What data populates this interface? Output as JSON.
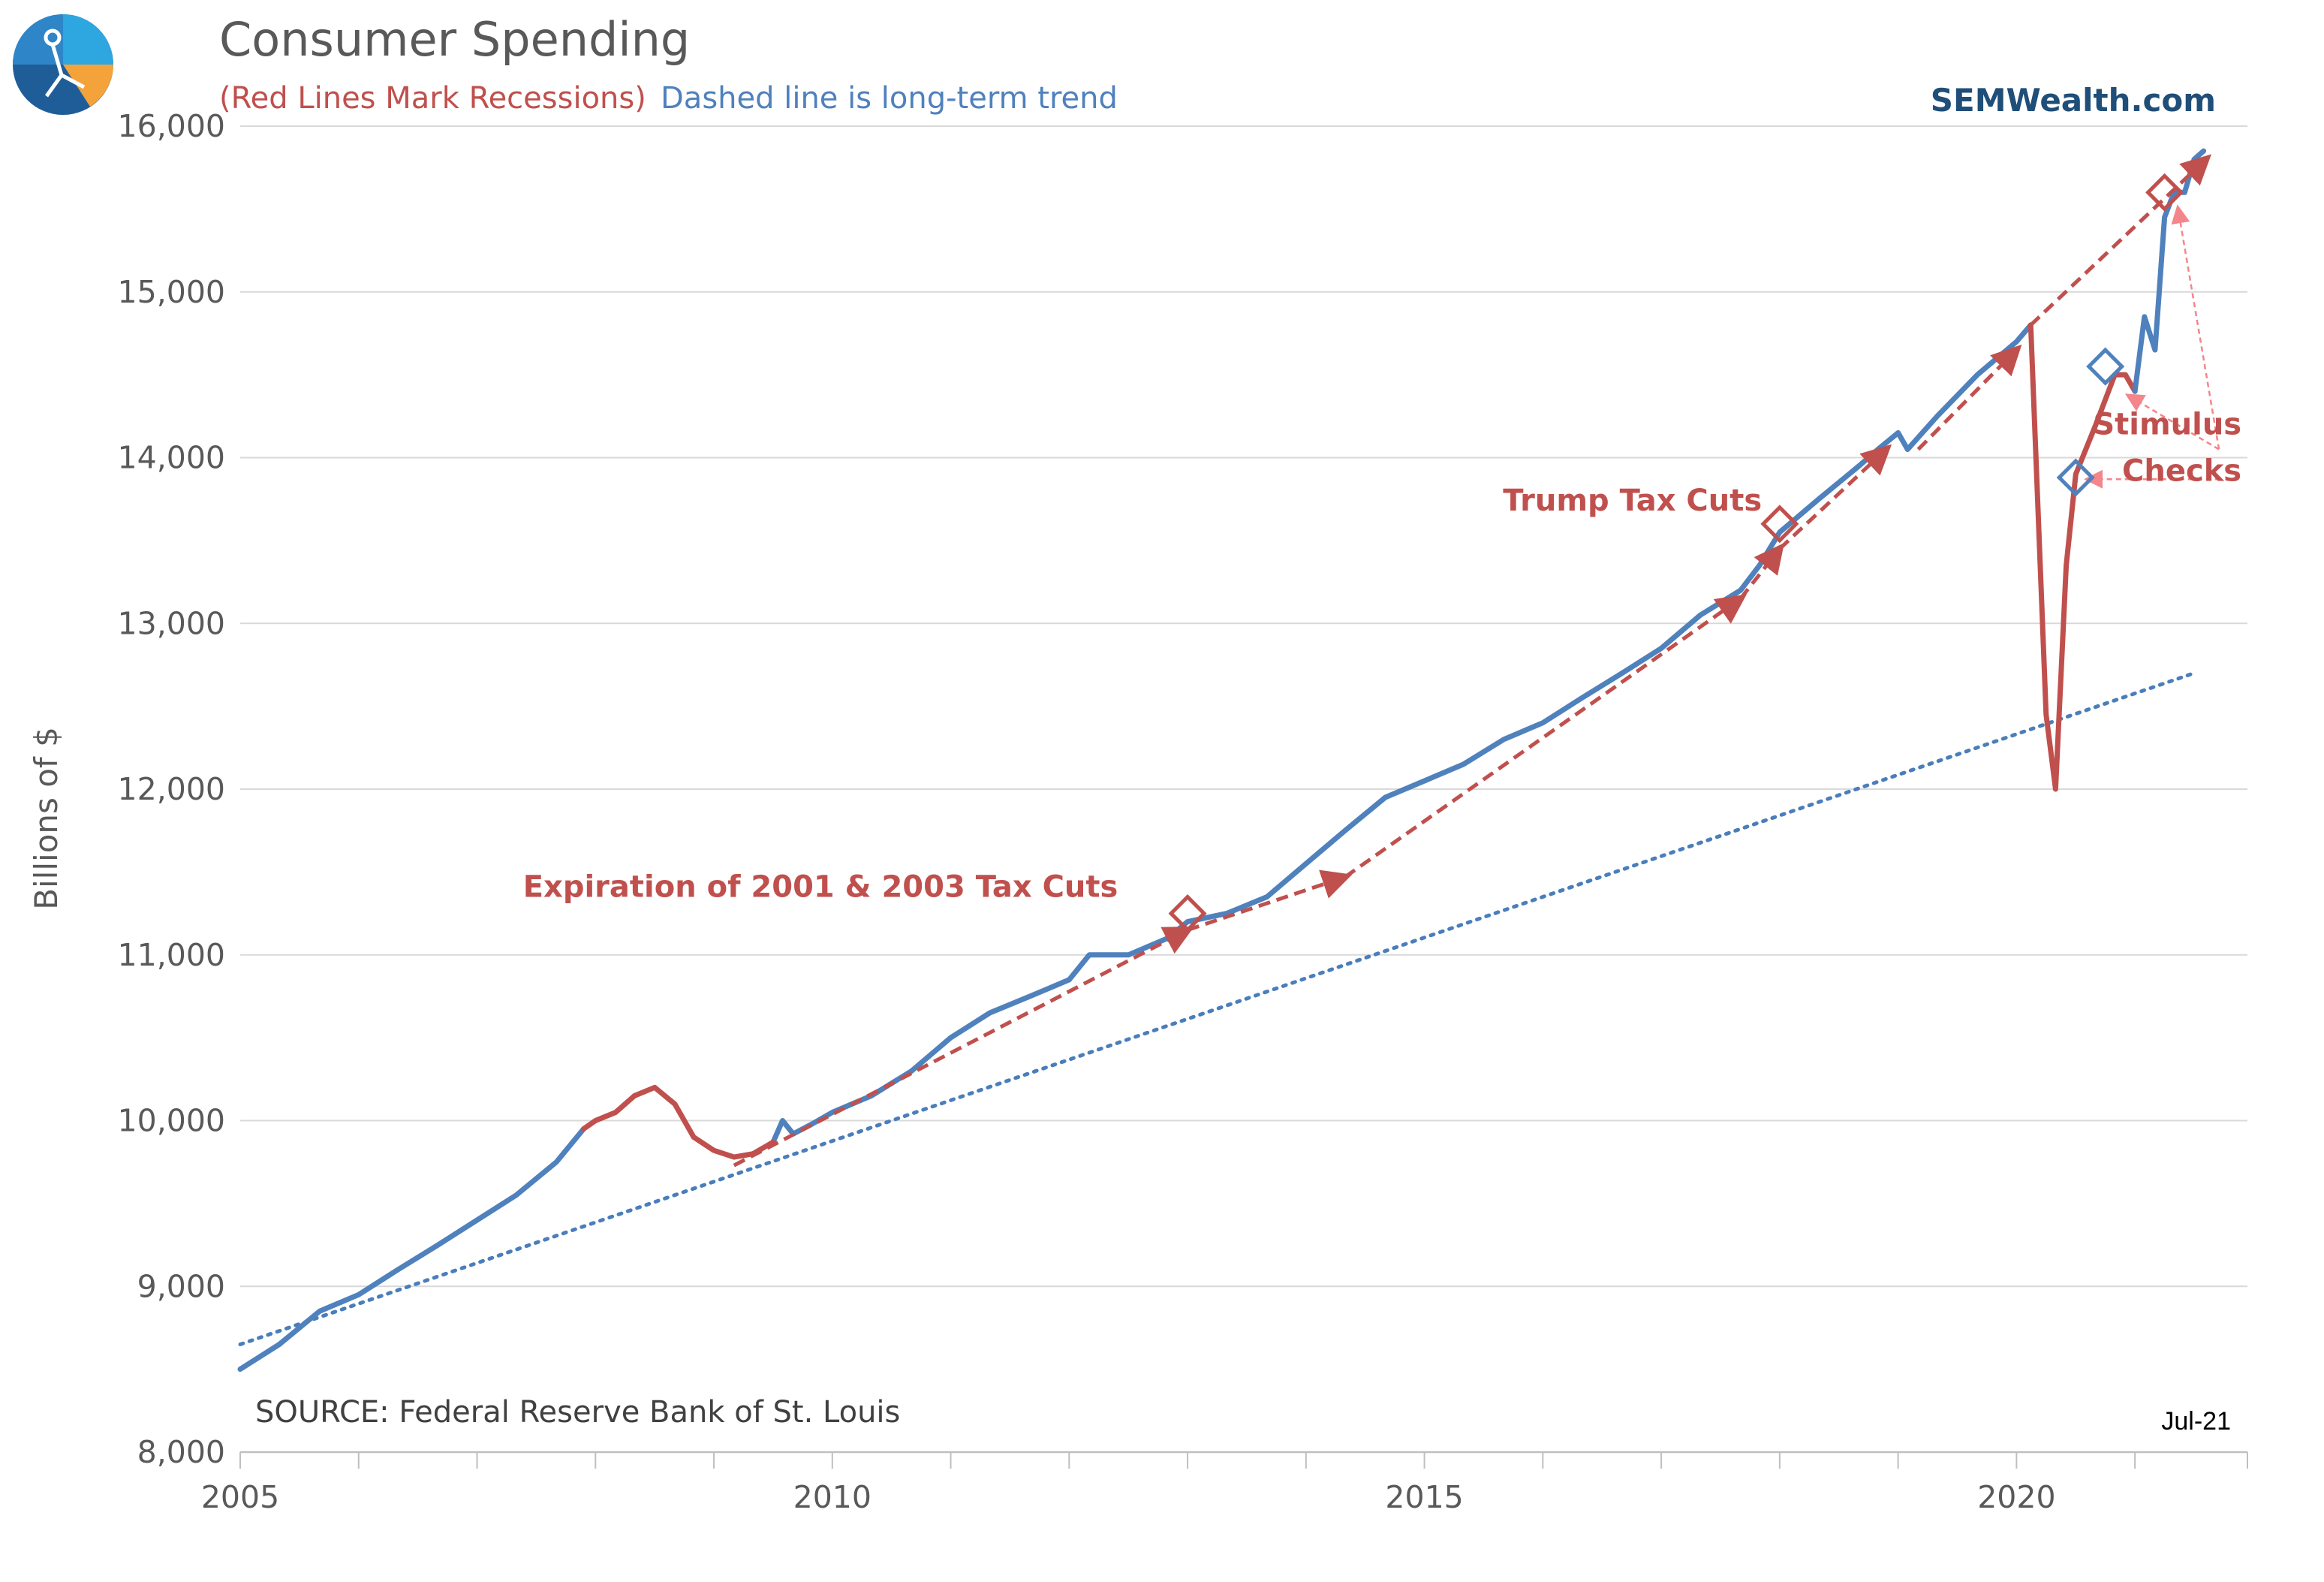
{
  "header": {
    "title": "Consumer Spending",
    "subtitle_recessions": "(Red Lines Mark Recessions)",
    "subtitle_trend": "Dashed line is long-term trend",
    "brand": "SEMWealth.com",
    "logo_icon": "sem-compass-logo-icon"
  },
  "footer": {
    "source": "SOURCE:  Federal Reserve Bank of St. Louis",
    "latest_date": "Jul-21"
  },
  "colors": {
    "series": "#4f81bd",
    "recession": "#c0504d",
    "annotation": "#c0504d",
    "trend": "#4a7ebb",
    "arrow_light": "#f4858b",
    "grid": "#d9d9d9"
  },
  "chart_data": {
    "type": "line",
    "title": "Consumer Spending",
    "subtitle": "(Red Lines Mark Recessions) Dashed line is long-term trend",
    "xlabel": "",
    "ylabel": "Billions of $",
    "xlim": [
      2005.0,
      2021.95
    ],
    "ylim": [
      8000,
      16000
    ],
    "x_ticks": [
      2005,
      2010,
      2015,
      2020
    ],
    "y_ticks": [
      8000,
      9000,
      10000,
      11000,
      12000,
      13000,
      14000,
      15000,
      16000
    ],
    "grid": "horizontal",
    "series": [
      {
        "name": "",
        "points": [
          [
            2005.0,
            8500
          ],
          [
            2005.33,
            8650
          ],
          [
            2005.67,
            8850
          ],
          [
            2006.0,
            8950
          ],
          [
            2006.33,
            9100
          ],
          [
            2006.67,
            9250
          ],
          [
            2007.0,
            9400
          ],
          [
            2007.33,
            9550
          ],
          [
            2007.67,
            9750
          ],
          [
            2007.9,
            9950
          ]
        ]
      },
      {
        "name": "",
        "points": [
          [
            2009.5,
            9870
          ],
          [
            2009.58,
            10000
          ],
          [
            2009.67,
            9920
          ],
          [
            2009.83,
            9980
          ],
          [
            2010.0,
            10050
          ],
          [
            2010.33,
            10150
          ],
          [
            2010.67,
            10300
          ],
          [
            2011.0,
            10500
          ],
          [
            2011.33,
            10650
          ],
          [
            2011.67,
            10750
          ],
          [
            2012.0,
            10850
          ],
          [
            2012.17,
            11000
          ],
          [
            2012.5,
            11000
          ],
          [
            2012.83,
            11100
          ],
          [
            2013.0,
            11200
          ],
          [
            2013.33,
            11250
          ],
          [
            2013.67,
            11350
          ],
          [
            2014.0,
            11550
          ],
          [
            2014.33,
            11750
          ],
          [
            2014.67,
            11950
          ],
          [
            2015.0,
            12050
          ],
          [
            2015.33,
            12150
          ],
          [
            2015.67,
            12300
          ],
          [
            2016.0,
            12400
          ],
          [
            2016.33,
            12550
          ],
          [
            2016.67,
            12700
          ],
          [
            2017.0,
            12850
          ],
          [
            2017.33,
            13050
          ],
          [
            2017.67,
            13200
          ],
          [
            2017.83,
            13350
          ],
          [
            2018.0,
            13550
          ],
          [
            2018.33,
            13750
          ],
          [
            2018.67,
            13950
          ],
          [
            2018.83,
            14050
          ],
          [
            2019.0,
            14150
          ],
          [
            2019.08,
            14050
          ],
          [
            2019.33,
            14250
          ],
          [
            2019.67,
            14500
          ],
          [
            2020.0,
            14700
          ],
          [
            2020.12,
            14800
          ]
        ]
      },
      {
        "name": "",
        "points": [
          [
            2020.12,
            14800
          ],
          [
            2020.25,
            12450
          ],
          [
            2020.33,
            12000
          ],
          [
            2020.42,
            13350
          ],
          [
            2020.5,
            13900
          ],
          [
            2020.67,
            14200
          ],
          [
            2020.83,
            14500
          ],
          [
            2020.92,
            14500
          ],
          [
            2021.0,
            14400
          ]
        ]
      },
      {
        "name": "",
        "points": [
          [
            2021.0,
            14400
          ],
          [
            2021.08,
            14850
          ],
          [
            2021.17,
            14650
          ],
          [
            2021.25,
            15450
          ],
          [
            2021.33,
            15600
          ],
          [
            2021.42,
            15600
          ],
          [
            2021.5,
            15800
          ],
          [
            2021.58,
            15850
          ]
        ]
      },
      {
        "name": "",
        "points": [
          [
            2007.9,
            9950
          ],
          [
            2008.0,
            10000
          ],
          [
            2008.17,
            10050
          ],
          [
            2008.33,
            10150
          ],
          [
            2008.5,
            10200
          ],
          [
            2008.67,
            10100
          ],
          [
            2008.83,
            9900
          ],
          [
            2009.0,
            9820
          ],
          [
            2009.17,
            9780
          ],
          [
            2009.33,
            9800
          ],
          [
            2009.5,
            9870
          ]
        ]
      }
    ],
    "trend_line": [
      [
        2005.0,
        8650
      ],
      [
        2021.5,
        12700
      ]
    ],
    "annotations": [
      {
        "text": "Expiration of 2001 & 2003 Tax Cuts",
        "x": 2009.9,
        "y": 11350
      },
      {
        "text": "Trump Tax Cuts",
        "x": 2017.85,
        "y": 13680
      },
      {
        "text": "Stimulus",
        "x": 2021.9,
        "y": 14140
      },
      {
        "text": "Checks",
        "x": 2021.9,
        "y": 13860
      }
    ],
    "markers": [
      {
        "x": 2013.0,
        "y": 11250,
        "color": "red"
      },
      {
        "x": 2018.0,
        "y": 13600,
        "color": "red"
      },
      {
        "x": 2020.5,
        "y": 13880,
        "color": "blue"
      },
      {
        "x": 2020.75,
        "y": 14550,
        "color": "blue"
      },
      {
        "x": 2021.25,
        "y": 15600,
        "color": "red"
      }
    ],
    "trend_segments": [
      [
        [
          2009.17,
          9730
        ],
        [
          2013.0,
          11150
        ]
      ],
      [
        [
          2013.0,
          11150
        ],
        [
          2014.33,
          11470
        ]
      ],
      [
        [
          2014.33,
          11470
        ],
        [
          2017.67,
          13150
        ]
      ],
      [
        [
          2017.67,
          13150
        ],
        [
          2018.0,
          13450
        ]
      ],
      [
        [
          2018.0,
          13450
        ],
        [
          2018.9,
          14050
        ]
      ],
      [
        [
          2019.17,
          14050
        ],
        [
          2020.0,
          14650
        ]
      ],
      [
        [
          2020.12,
          14800
        ],
        [
          2021.6,
          15800
        ]
      ]
    ]
  }
}
